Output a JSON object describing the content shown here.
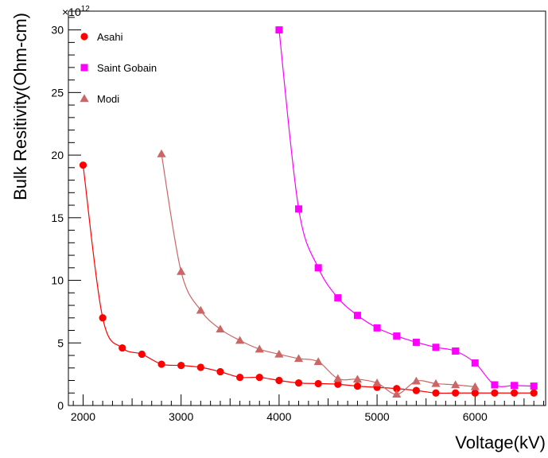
{
  "chart_data": {
    "type": "line",
    "xlabel": "Voltage(kV)",
    "ylabel": "Bulk Resitivity(Ohm-cm)",
    "y_multiplier_base": "×10",
    "y_multiplier_exp": "12",
    "xlim": [
      1850,
      6720
    ],
    "ylim": [
      0,
      31.5
    ],
    "x_ticks": [
      2000,
      3000,
      4000,
      5000,
      6000
    ],
    "y_ticks": [
      0,
      5,
      10,
      15,
      20,
      25,
      30
    ],
    "legend_position": "top-left",
    "series": [
      {
        "name": "Asahi",
        "marker": "circle",
        "color": "#ff0000",
        "x": [
          2000,
          2200,
          2400,
          2600,
          2800,
          3000,
          3200,
          3400,
          3600,
          3800,
          4000,
          4200,
          4400,
          4600,
          4800,
          5000,
          5200,
          5400,
          5600,
          5800,
          6000,
          6200,
          6400,
          6600
        ],
        "y": [
          19.2,
          7.0,
          4.6,
          4.1,
          3.3,
          3.2,
          3.05,
          2.7,
          2.25,
          2.25,
          2.0,
          1.8,
          1.75,
          1.7,
          1.55,
          1.45,
          1.35,
          1.2,
          1.0,
          1.0,
          1.0,
          1.0,
          1.0,
          1.0
        ]
      },
      {
        "name": "Saint Gobain",
        "marker": "square",
        "color": "#ff00ff",
        "x": [
          4000,
          4200,
          4400,
          4600,
          4800,
          5000,
          5200,
          5400,
          5600,
          5800,
          6000,
          6200,
          6400,
          6600
        ],
        "y": [
          30.0,
          15.7,
          11.0,
          8.6,
          7.2,
          6.2,
          5.55,
          5.05,
          4.65,
          4.35,
          3.4,
          1.65,
          1.6,
          1.55
        ]
      },
      {
        "name": "Modi",
        "marker": "triangle",
        "color": "#cc6666",
        "x": [
          2800,
          3000,
          3200,
          3400,
          3600,
          3800,
          4000,
          4200,
          4400,
          4600,
          4800,
          5000,
          5200,
          5400,
          5600,
          5800,
          6000
        ],
        "y": [
          20.1,
          10.7,
          7.6,
          6.1,
          5.2,
          4.5,
          4.1,
          3.75,
          3.5,
          2.15,
          2.1,
          1.8,
          0.9,
          1.95,
          1.75,
          1.65,
          1.5
        ]
      }
    ]
  }
}
